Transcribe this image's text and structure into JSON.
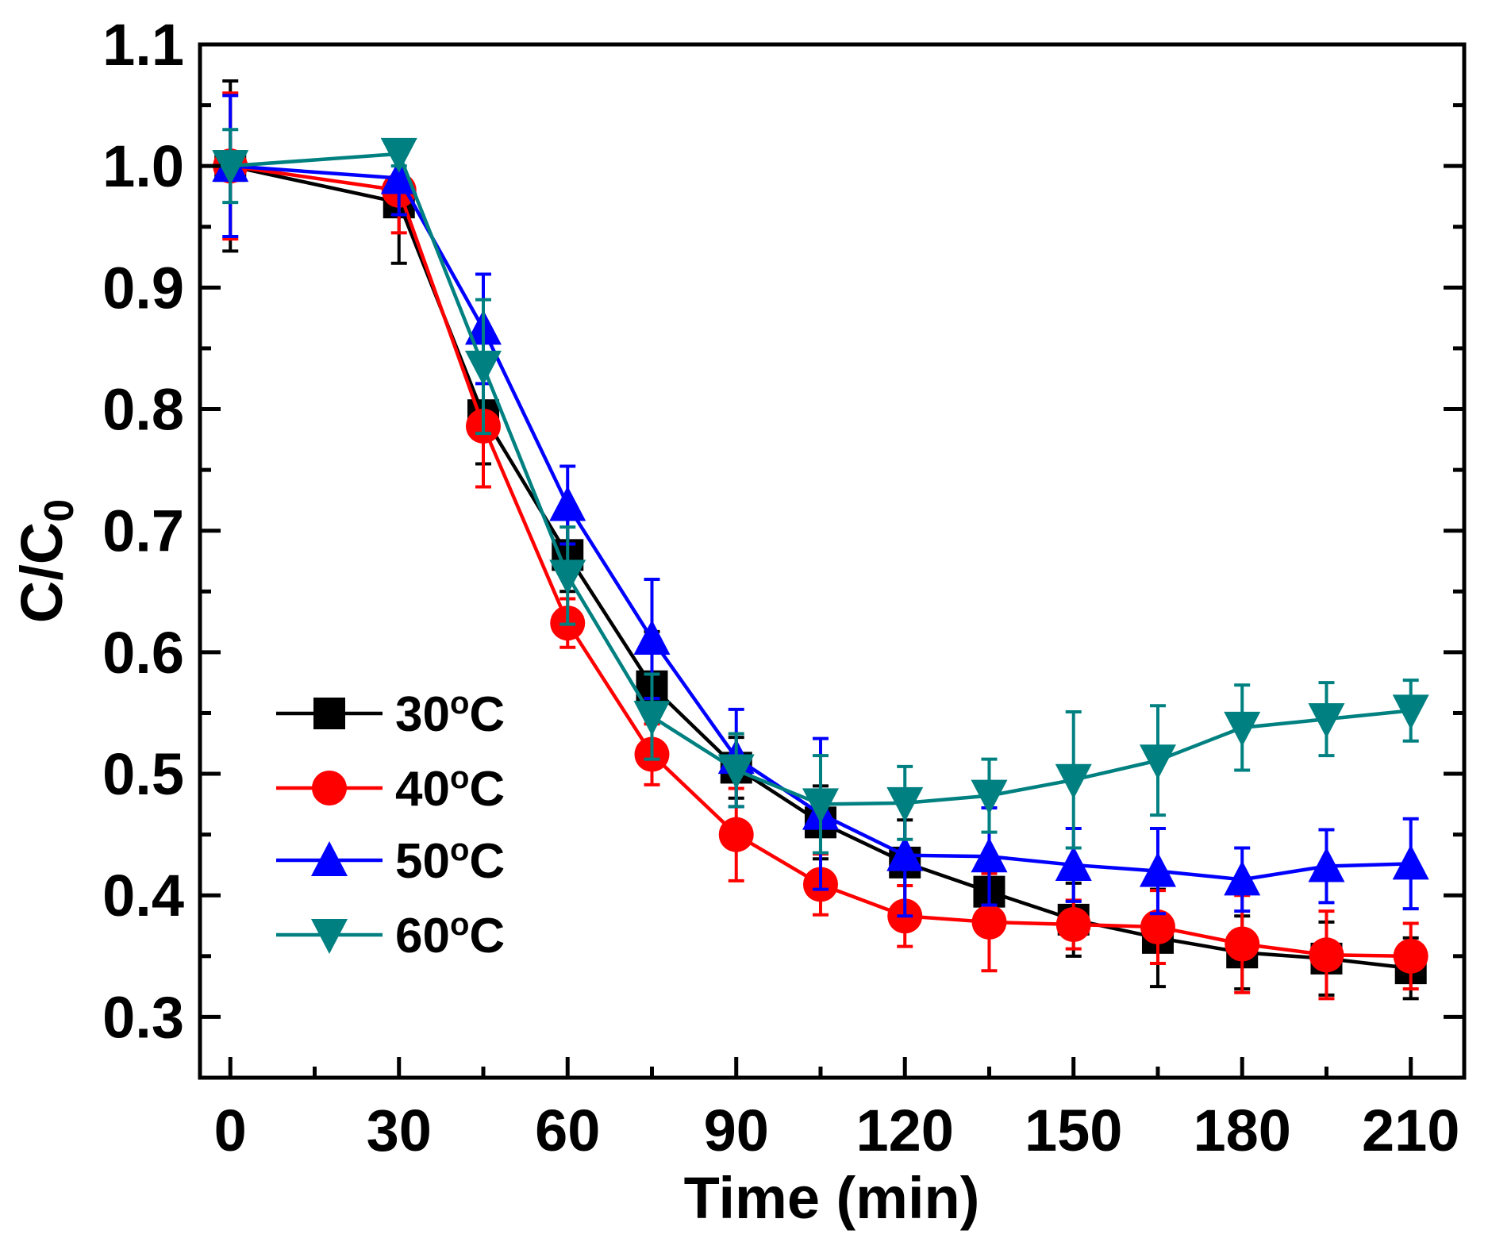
{
  "chart_data": {
    "type": "line",
    "title": "",
    "xlabel": "Time (min)",
    "ylabel_main": "C/C",
    "ylabel_sub": "0",
    "xlim": [
      -5.4,
      219.5
    ],
    "ylim": [
      0.25,
      1.1
    ],
    "xticks": [
      0,
      30,
      60,
      90,
      120,
      150,
      180,
      210
    ],
    "xtick_labels": [
      "0",
      "30",
      "60",
      "90",
      "120",
      "150",
      "180",
      "210"
    ],
    "yticks": [
      0.3,
      0.4,
      0.5,
      0.6,
      0.7,
      0.8,
      0.9,
      1.0,
      1.1
    ],
    "ytick_labels": [
      "0.3",
      "0.4",
      "0.5",
      "0.6",
      "0.7",
      "0.8",
      "0.9",
      "1.0",
      "1.1"
    ],
    "grid": false,
    "legend_position": "bottom-left",
    "x": [
      0,
      30,
      45,
      60,
      75,
      90,
      105,
      120,
      135,
      150,
      165,
      180,
      195,
      210
    ],
    "series": [
      {
        "name": "30",
        "unit": "oC",
        "color": "#000000",
        "marker": "square",
        "values": [
          1.0,
          0.97,
          0.795,
          0.68,
          0.572,
          0.505,
          0.46,
          0.427,
          0.403,
          0.38,
          0.365,
          0.353,
          0.348,
          0.34
        ],
        "errors": [
          0.07,
          0.05,
          0.04,
          0.03,
          0.045,
          0.025,
          0.03,
          0.035,
          0.02,
          0.03,
          0.04,
          0.03,
          0.03,
          0.025
        ]
      },
      {
        "name": "40",
        "unit": "oC",
        "color": "#ff0000",
        "marker": "circle",
        "values": [
          1.0,
          0.98,
          0.786,
          0.624,
          0.516,
          0.45,
          0.409,
          0.383,
          0.378,
          0.376,
          0.374,
          0.36,
          0.351,
          0.35
        ],
        "errors": [
          0.06,
          0.035,
          0.05,
          0.02,
          0.025,
          0.038,
          0.025,
          0.025,
          0.04,
          0.02,
          0.03,
          0.04,
          0.036,
          0.027
        ]
      },
      {
        "name": "50",
        "unit": "oC",
        "color": "#0000ff",
        "marker": "triangle-up",
        "values": [
          1.0,
          0.99,
          0.866,
          0.721,
          0.611,
          0.513,
          0.467,
          0.433,
          0.432,
          0.425,
          0.42,
          0.413,
          0.424,
          0.426
        ],
        "errors": [
          0.058,
          0.03,
          0.045,
          0.032,
          0.049,
          0.04,
          0.062,
          0.05,
          0.04,
          0.03,
          0.035,
          0.026,
          0.03,
          0.037
        ]
      },
      {
        "name": "60",
        "unit": "oC",
        "color": "#008080",
        "marker": "triangle-down",
        "values": [
          1.0,
          1.01,
          0.835,
          0.663,
          0.547,
          0.503,
          0.475,
          0.476,
          0.482,
          0.495,
          0.511,
          0.538,
          0.545,
          0.552
        ],
        "errors": [
          0.03,
          0.01,
          0.055,
          0.04,
          0.035,
          0.03,
          0.04,
          0.03,
          0.03,
          0.056,
          0.045,
          0.035,
          0.03,
          0.025
        ]
      }
    ]
  }
}
